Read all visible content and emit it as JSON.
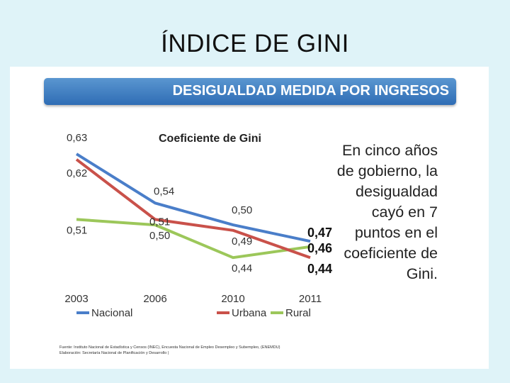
{
  "slide": {
    "title": "ÍNDICE DE GINI"
  },
  "banner": {
    "text": "DESIGUALDAD MEDIDA POR INGRESOS"
  },
  "side_text": {
    "lines": [
      "En cinco años",
      "de gobierno, la",
      "desigualdad",
      "cayó en 7",
      "puntos en el",
      "coeficiente de",
      "Gini."
    ]
  },
  "source": {
    "line1": "Fuente: Instituto Nacional de Estadística y Censos (INEC), Encuesta Nacional de Empleo Desempleo y Subempleo, (ENEMDU)",
    "line2": "Elaboración: Secretaría Nacional de Planificación y Desarrollo |"
  },
  "colors": {
    "nacional": "#4a7ec9",
    "urbana": "#c9514a",
    "rural": "#9cc75a",
    "banner": "#3a78bd"
  },
  "chart_data": {
    "type": "line",
    "title": "Coeficiente de Gini",
    "xlabel": "",
    "ylabel": "",
    "categories": [
      "2003",
      "2006",
      "2010",
      "2011"
    ],
    "ylim": [
      0.4,
      0.66
    ],
    "series": [
      {
        "name": "Nacional",
        "values": [
          0.63,
          0.54,
          0.5,
          0.47
        ],
        "labels": [
          "0,63",
          "0,54",
          "0,50",
          "0,47"
        ]
      },
      {
        "name": "Urbana",
        "values": [
          0.62,
          0.51,
          0.49,
          0.44
        ],
        "labels": [
          "0,62",
          "0,51",
          "0,49",
          "0,44"
        ]
      },
      {
        "name": "Rural",
        "values": [
          0.51,
          0.5,
          0.44,
          0.46
        ],
        "labels": [
          "0,51",
          "0,50",
          "0,44",
          "0,46"
        ]
      }
    ],
    "legend": [
      "Nacional",
      "Urbana",
      "Rural"
    ],
    "legend_position": "bottom",
    "grid": false
  }
}
